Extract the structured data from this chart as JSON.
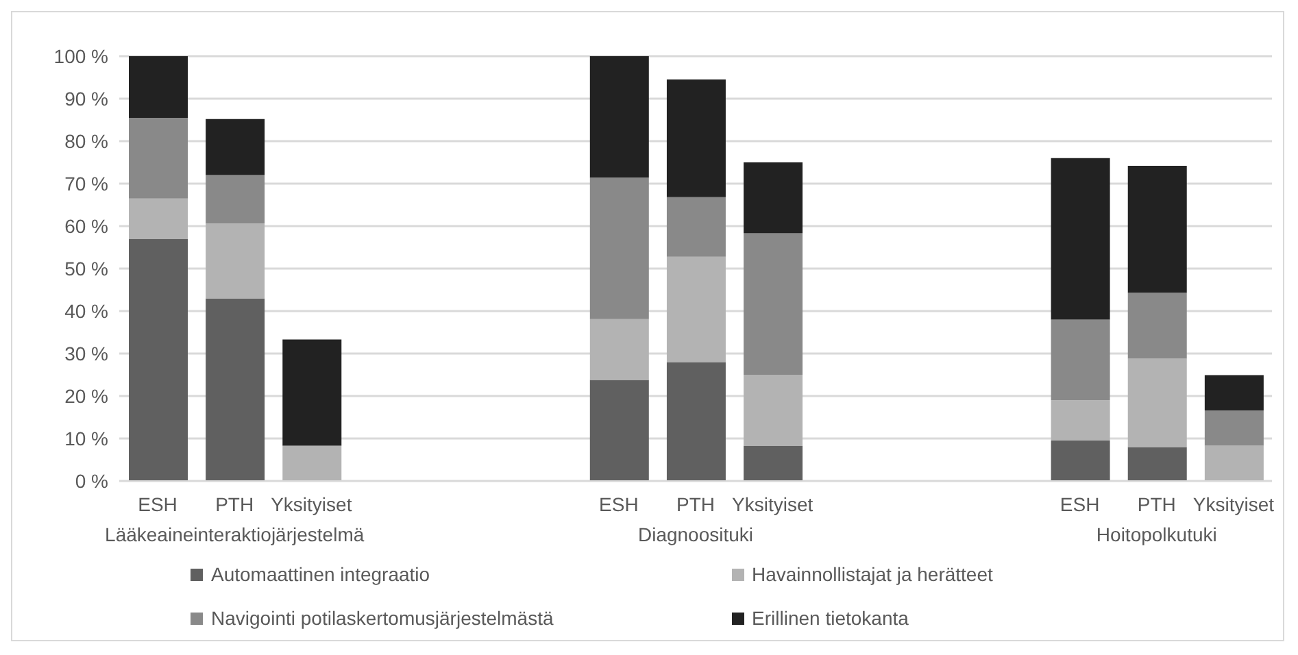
{
  "chart_data": {
    "type": "bar",
    "stacked": true,
    "categories": [
      "ESH",
      "PTH",
      "Yksityiset",
      null,
      null,
      null,
      "ESH",
      "PTH",
      "Yksityiset",
      null,
      null,
      null,
      "ESH",
      "PTH",
      "Yksityiset"
    ],
    "series": [
      {
        "name": "Automaattinen integraatio",
        "color": "#606060",
        "values": [
          57,
          43,
          0,
          null,
          null,
          null,
          23.8,
          28,
          8.3,
          null,
          null,
          null,
          9.5,
          8,
          0
        ]
      },
      {
        "name": "Havainnollistajat ja herätteet",
        "color": "#b3b3b3",
        "values": [
          9.5,
          17.6,
          8.3,
          null,
          null,
          null,
          14.3,
          24.8,
          16.7,
          null,
          null,
          null,
          9.5,
          20.8,
          8.3
        ]
      },
      {
        "name": "Navigointi potilaskertomusjärjestelmästä",
        "color": "#898989",
        "values": [
          19,
          11.4,
          0,
          null,
          null,
          null,
          33.3,
          14,
          33.3,
          null,
          null,
          null,
          19,
          15.5,
          8.3
        ]
      },
      {
        "name": "Erillinen tietokanta",
        "color": "#222222",
        "values": [
          14.5,
          13.2,
          25,
          null,
          null,
          null,
          28.6,
          27.7,
          16.7,
          null,
          null,
          null,
          38,
          29.9,
          8.3
        ]
      }
    ],
    "annotations": [
      "Lääkeaineinteraktiojärjestelmä",
      "Diagnoosituki",
      "Hoitopolkutuki"
    ],
    "ylim": [
      0,
      100
    ],
    "yticks": [
      {
        "value": 0,
        "label": "0 %"
      },
      {
        "value": 10,
        "label": "10 %"
      },
      {
        "value": 20,
        "label": "20 %"
      },
      {
        "value": 30,
        "label": "30 %"
      },
      {
        "value": 40,
        "label": "40 %"
      },
      {
        "value": 50,
        "label": "50 %"
      },
      {
        "value": 60,
        "label": "60 %"
      },
      {
        "value": 70,
        "label": "70 %"
      },
      {
        "value": 80,
        "label": "80 %"
      },
      {
        "value": 90,
        "label": "90 %"
      },
      {
        "value": 100,
        "label": "100 %"
      }
    ],
    "grid": "y",
    "legend": "bottom"
  }
}
